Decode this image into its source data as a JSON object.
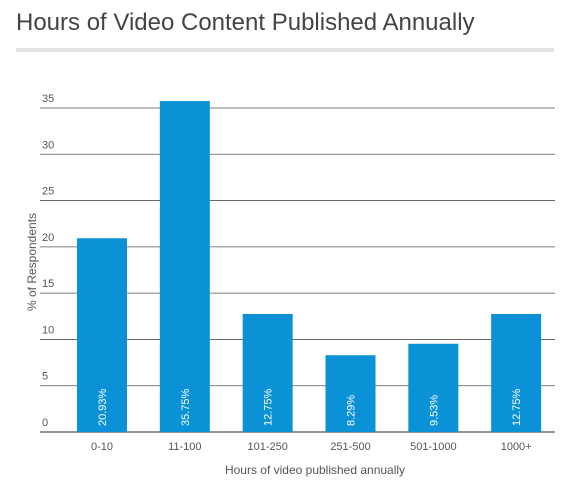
{
  "chart_data": {
    "type": "bar",
    "title": "Hours of Video Content Published Annually",
    "xlabel": "Hours of video published annually",
    "ylabel": "% of Respondents",
    "categories": [
      "0-10",
      "11-100",
      "101-250",
      "251-500",
      "501-1000",
      "1000+"
    ],
    "values": [
      20.93,
      35.75,
      12.75,
      8.29,
      9.53,
      12.75
    ],
    "data_labels": [
      "20.93%",
      "35.75%",
      "12.75%",
      "8.29%",
      "9.53%",
      "12.75%"
    ],
    "yticks": [
      0,
      5,
      10,
      15,
      20,
      25,
      30,
      35
    ],
    "ylim": [
      0,
      35
    ],
    "grid": true,
    "legend": "none",
    "colors": {
      "bar": "#0a91d6",
      "grid": "#555555",
      "axis_text": "#555555",
      "label_text": "#ffffff",
      "title_rule": "#e4e4e4"
    }
  }
}
